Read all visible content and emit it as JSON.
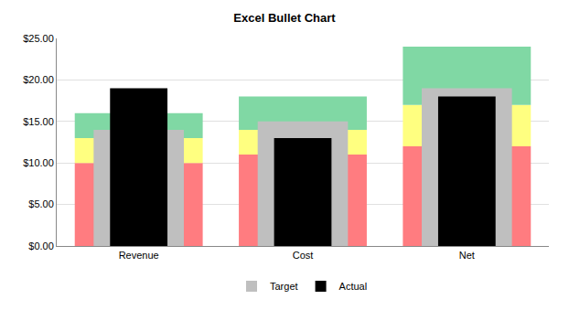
{
  "chart_data": {
    "type": "bullet",
    "title": "Excel Bullet Chart",
    "categories": [
      "Revenue",
      "Cost",
      "Net"
    ],
    "stacked": true,
    "series": [
      {
        "type": "range",
        "color": "#ff7c80",
        "values": [
          10,
          11,
          12
        ]
      },
      {
        "type": "range",
        "color": "#ffff80",
        "values": [
          3,
          3,
          5
        ]
      },
      {
        "type": "range",
        "color": "#80d8a4",
        "values": [
          3,
          4,
          7
        ]
      },
      {
        "type": "target",
        "name": "Target",
        "color": "#bfbfbf",
        "values": [
          14,
          15,
          19
        ]
      },
      {
        "type": "bar",
        "name": "Actual",
        "color": "#000000",
        "values": [
          19,
          13,
          18
        ]
      }
    ],
    "ylim": [
      0,
      25
    ],
    "yticks": [
      {
        "value": 0,
        "label": "$0.00"
      },
      {
        "value": 5,
        "label": "$5.00"
      },
      {
        "value": 10,
        "label": "$10.00"
      },
      {
        "value": 15,
        "label": "$15.00"
      },
      {
        "value": 20,
        "label": "$20.00"
      },
      {
        "value": 25,
        "label": "$25.00"
      }
    ],
    "grid": true,
    "legend": "bottom"
  }
}
